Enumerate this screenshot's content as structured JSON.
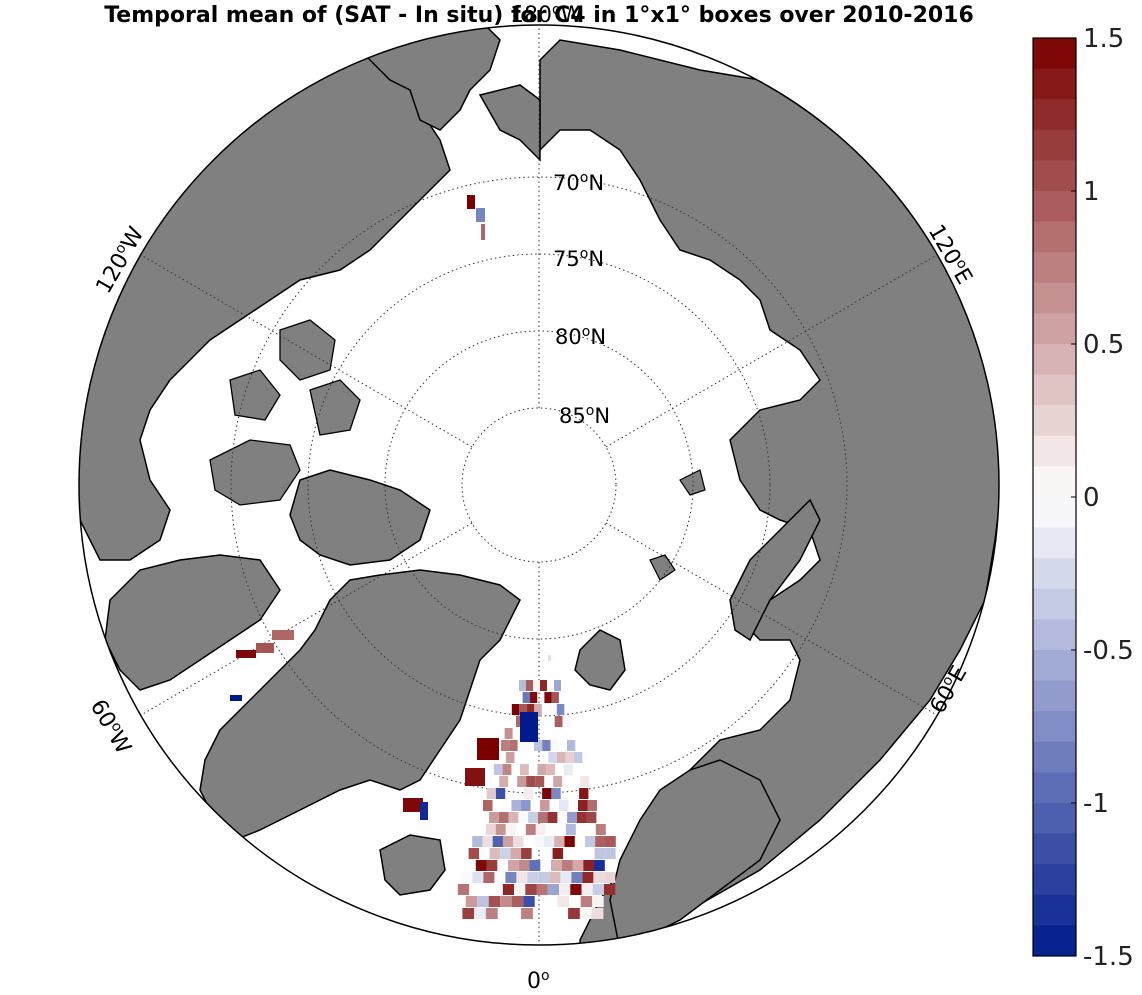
{
  "title": "Temporal mean of (SAT - In situ) for C4 in 1°x1° boxes over 2010-2016",
  "colors": {
    "land": "#808080",
    "ocean": "#ffffff",
    "coast": "#000000",
    "grid": "#333333"
  },
  "latitude_labels": [
    {
      "lat": 70,
      "deg": "70",
      "suffix": "N"
    },
    {
      "lat": 75,
      "deg": "75",
      "suffix": "N"
    },
    {
      "lat": 80,
      "deg": "80",
      "suffix": "N"
    },
    {
      "lat": 85,
      "deg": "85",
      "suffix": "N"
    }
  ],
  "longitude_labels": [
    {
      "lon": 180,
      "deg": "180",
      "suffix": "W"
    },
    {
      "lon": 120,
      "deg": "120",
      "suffix": "E"
    },
    {
      "lon": 60,
      "deg": "60",
      "suffix": "E"
    },
    {
      "lon": 0,
      "deg": "0",
      "suffix": ""
    },
    {
      "lon": -60,
      "deg": "60",
      "suffix": "W"
    },
    {
      "lon": -120,
      "deg": "120",
      "suffix": "W"
    }
  ],
  "colorbar": {
    "min": -1.5,
    "max": 1.5,
    "steps": 30,
    "ticks": [
      {
        "value": 1.5,
        "label": "1.5"
      },
      {
        "value": 1,
        "label": "1"
      },
      {
        "value": 0.5,
        "label": "0.5"
      },
      {
        "value": 0,
        "label": "0"
      },
      {
        "value": -0.5,
        "label": "-0.5"
      },
      {
        "value": -1,
        "label": "-1"
      },
      {
        "value": -1.5,
        "label": "-1.5"
      }
    ],
    "neg_color": "#001a8c",
    "mid_color": "#ffffff",
    "pos_color": "#7a0000"
  }
}
